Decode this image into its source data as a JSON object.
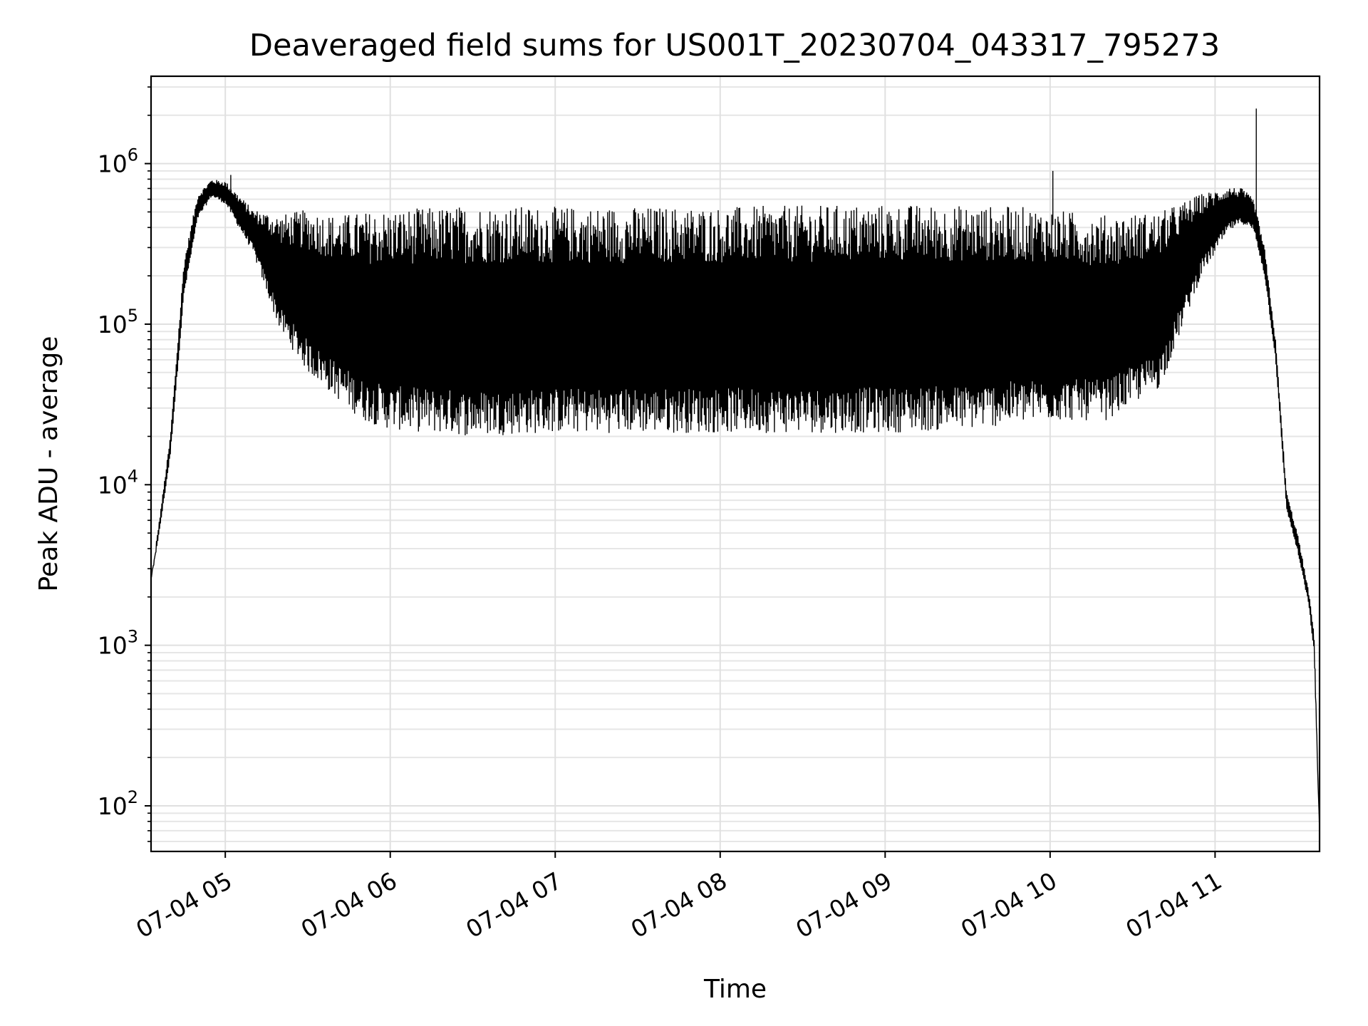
{
  "chart_data": {
    "type": "line",
    "title": "Deaveraged field sums for US001T_20230704_043317_795273",
    "xlabel": "Time",
    "ylabel": "Peak ADU - average",
    "yscale": "log",
    "ylim": [
      52,
      3500000
    ],
    "xlim": [
      "07-04 04:33",
      "07-04 11:38"
    ],
    "grid": true,
    "line_color": "#000000",
    "x_ticks": [
      "07-04 05",
      "07-04 06",
      "07-04 07",
      "07-04 08",
      "07-04 09",
      "07-04 10",
      "07-04 11"
    ],
    "y_ticks": [
      {
        "base": "10",
        "exp": "2",
        "value": 100
      },
      {
        "base": "10",
        "exp": "3",
        "value": 1000
      },
      {
        "base": "10",
        "exp": "4",
        "value": 10000
      },
      {
        "base": "10",
        "exp": "5",
        "value": 100000
      },
      {
        "base": "10",
        "exp": "6",
        "value": 1000000
      }
    ],
    "x_tick_times": [
      "07-04 05:00",
      "07-04 06:00",
      "07-04 07:00",
      "07-04 08:00",
      "07-04 09:00",
      "07-04 10:00",
      "07-04 11:00"
    ],
    "series": [
      {
        "values_desc": "noisy sawtooth between envelope lower bound and upper bound",
        "envelope": {
          "x": [
            "07-04 04:33",
            "07-04 04:36",
            "07-04 04:40",
            "07-04 04:45",
            "07-04 04:50",
            "07-04 04:55",
            "07-04 05:00",
            "07-04 05:10",
            "07-04 05:20",
            "07-04 05:30",
            "07-04 05:40",
            "07-04 05:50",
            "07-04 06:00",
            "07-04 06:30",
            "07-04 07:00",
            "07-04 08:00",
            "07-04 09:00",
            "07-04 09:30",
            "07-04 09:50",
            "07-04 10:00",
            "07-04 10:20",
            "07-04 10:40",
            "07-04 10:55",
            "07-04 11:05",
            "07-04 11:10",
            "07-04 11:14",
            "07-04 11:18",
            "07-04 11:22",
            "07-04 11:26",
            "07-04 11:30",
            "07-04 11:34",
            "07-04 11:36",
            "07-04 11:38"
          ],
          "lower": [
            2600,
            5000,
            15000,
            150000,
            450000,
            620000,
            560000,
            280000,
            90000,
            50000,
            35000,
            25000,
            22000,
            20000,
            21000,
            21000,
            21000,
            22000,
            24000,
            25000,
            25000,
            40000,
            200000,
            380000,
            420000,
            380000,
            200000,
            60000,
            7000,
            3800,
            1800,
            900,
            70
          ],
          "upper": [
            2600,
            6000,
            20000,
            250000,
            650000,
            800000,
            780000,
            520000,
            480000,
            520000,
            480000,
            500000,
            520000,
            550000,
            540000,
            540000,
            560000,
            550000,
            540000,
            520000,
            480000,
            500000,
            650000,
            720000,
            700000,
            600000,
            300000,
            80000,
            9000,
            5000,
            2200,
            1200,
            70
          ]
        },
        "spikes": [
          {
            "x": "07-04 05:02",
            "y": 850000
          },
          {
            "x": "07-04 10:01",
            "y": 900000
          },
          {
            "x": "07-04 11:15",
            "y": 2200000
          }
        ]
      }
    ]
  }
}
